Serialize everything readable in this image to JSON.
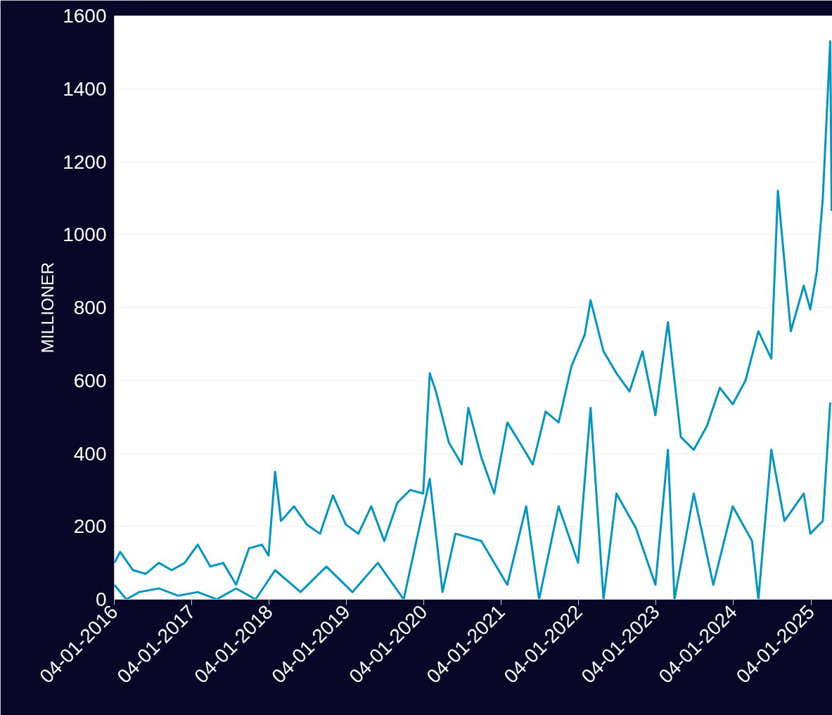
{
  "chart_data": {
    "type": "line",
    "ylabel": "MILLIONER",
    "grid": "y",
    "line_style": "solid",
    "marker": "none",
    "xlim": [
      "2016-01-04",
      "2025-04-15"
    ],
    "ylim": [
      0,
      1600
    ],
    "yticks": [
      0,
      200,
      400,
      600,
      800,
      1000,
      1200,
      1400,
      1600
    ],
    "xticks": [
      {
        "value": "2016-01-04",
        "label": "04-01-2016"
      },
      {
        "value": "2017-01-04",
        "label": "04-01-2017"
      },
      {
        "value": "2018-01-04",
        "label": "04-01-2018"
      },
      {
        "value": "2019-01-04",
        "label": "04-01-2019"
      },
      {
        "value": "2020-01-04",
        "label": "04-01-2020"
      },
      {
        "value": "2021-01-04",
        "label": "04-01-2021"
      },
      {
        "value": "2022-01-04",
        "label": "04-01-2022"
      },
      {
        "value": "2023-01-04",
        "label": "04-01-2023"
      },
      {
        "value": "2024-01-04",
        "label": "04-01-2024"
      },
      {
        "value": "2025-01-04",
        "label": "04-01-2025"
      }
    ],
    "series": [
      {
        "color": "#0096c0",
        "x": [
          "2016-01-04",
          "2016-02",
          "2016-04",
          "2016-06",
          "2016-08",
          "2016-10",
          "2016-12",
          "2017-02",
          "2017-04",
          "2017-06",
          "2017-08",
          "2017-10",
          "2017-12",
          "2018-01",
          "2018-02",
          "2018-03",
          "2018-05",
          "2018-07",
          "2018-09",
          "2018-11",
          "2019-01",
          "2019-03",
          "2019-05",
          "2019-07",
          "2019-09",
          "2019-11",
          "2020-01",
          "2020-02",
          "2020-03",
          "2020-05",
          "2020-07",
          "2020-08",
          "2020-10",
          "2020-12",
          "2021-02",
          "2021-04",
          "2021-06",
          "2021-08",
          "2021-10",
          "2021-12",
          "2022-02",
          "2022-03",
          "2022-05",
          "2022-07",
          "2022-09",
          "2022-11",
          "2023-01",
          "2023-03",
          "2023-05",
          "2023-07",
          "2023-09",
          "2023-11",
          "2024-01",
          "2024-03",
          "2024-05",
          "2024-07",
          "2024-08",
          "2024-10",
          "2024-12",
          "2025-01",
          "2025-02",
          "2025-03",
          "2025-04-05",
          "2025-04-12"
        ],
        "values": [
          100,
          130,
          80,
          70,
          100,
          80,
          100,
          150,
          90,
          100,
          40,
          140,
          150,
          120,
          350,
          215,
          255,
          205,
          180,
          285,
          205,
          180,
          255,
          160,
          265,
          300,
          290,
          620,
          570,
          430,
          370,
          525,
          390,
          290,
          485,
          430,
          370,
          515,
          485,
          640,
          725,
          820,
          680,
          620,
          570,
          680,
          505,
          760,
          445,
          410,
          475,
          580,
          535,
          600,
          735,
          660,
          1120,
          735,
          860,
          795,
          900,
          1100,
          1530,
          1065
        ]
      },
      {
        "color": "#0096c0",
        "x": [
          "2016-01-04",
          "2016-03",
          "2016-05",
          "2016-08",
          "2016-11",
          "2017-02",
          "2017-05",
          "2017-08",
          "2017-11",
          "2018-02",
          "2018-06",
          "2018-10",
          "2019-02",
          "2019-06",
          "2019-10",
          "2020-02",
          "2020-04",
          "2020-06",
          "2020-10",
          "2021-02",
          "2021-05",
          "2021-07",
          "2021-10",
          "2022-01",
          "2022-03",
          "2022-05",
          "2022-07",
          "2022-10",
          "2023-01",
          "2023-03",
          "2023-04",
          "2023-07",
          "2023-10",
          "2024-01",
          "2024-04",
          "2024-05",
          "2024-07",
          "2024-09",
          "2024-12",
          "2025-01",
          "2025-03",
          "2025-04-05"
        ],
        "values": [
          40,
          0,
          20,
          30,
          10,
          20,
          0,
          30,
          0,
          80,
          20,
          90,
          20,
          100,
          0,
          330,
          20,
          180,
          160,
          40,
          255,
          0,
          255,
          100,
          525,
          0,
          290,
          195,
          40,
          410,
          0,
          290,
          40,
          255,
          160,
          0,
          410,
          215,
          290,
          180,
          215,
          540
        ]
      }
    ]
  }
}
